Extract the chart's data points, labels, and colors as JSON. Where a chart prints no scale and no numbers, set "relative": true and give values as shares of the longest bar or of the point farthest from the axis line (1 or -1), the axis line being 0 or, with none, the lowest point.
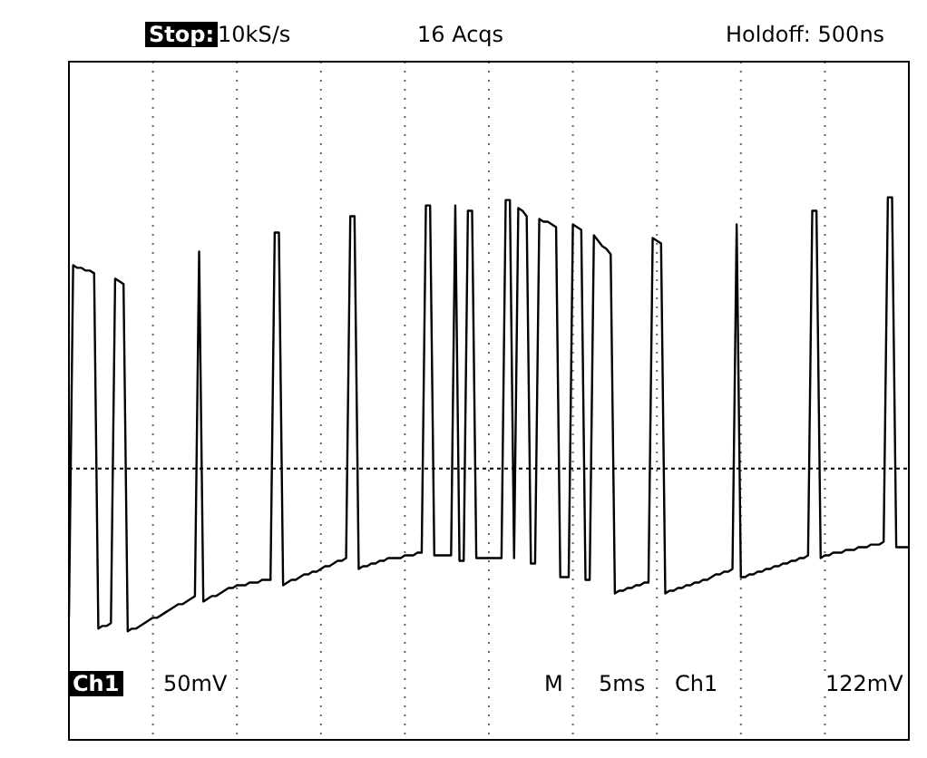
{
  "chart_data": {
    "type": "line",
    "relative": true,
    "color": "#000000",
    "grid": "x",
    "tick_labels": false,
    "ref_lines": [
      {
        "axis": "y",
        "value": 0,
        "line_style": "dotted"
      }
    ],
    "annotations": [
      "Stop:",
      "10kS/s",
      "16 Acqs",
      "Holdoff: 500ns",
      "Ch1",
      "50mV",
      "M",
      "5ms",
      "Ch1",
      "122mV"
    ],
    "categories": [
      null,
      null,
      null,
      null,
      null,
      null,
      null,
      null,
      null,
      null,
      null,
      null,
      null,
      null,
      null,
      null,
      null,
      null,
      null,
      null,
      null,
      null,
      null,
      null,
      null,
      null,
      null,
      null,
      null,
      null,
      null,
      null,
      null,
      null,
      null,
      null,
      null,
      null,
      null,
      null,
      null,
      null,
      null,
      null,
      null,
      null,
      null,
      null,
      null,
      null,
      null,
      null,
      null,
      null,
      null,
      null,
      null,
      null,
      null,
      null,
      null,
      null,
      null,
      null,
      null,
      null,
      null,
      null,
      null,
      null,
      null,
      null,
      null,
      null,
      null,
      null,
      null,
      null,
      null,
      null,
      null,
      null,
      null,
      null,
      null,
      null,
      null,
      null,
      null,
      null,
      null,
      null,
      null,
      null,
      null,
      null,
      null,
      null,
      null,
      null,
      null,
      null,
      null,
      null,
      null,
      null,
      null,
      null,
      null,
      null,
      null,
      null,
      null,
      null,
      null,
      null,
      null,
      null,
      null,
      null,
      null,
      null,
      null,
      null,
      null,
      null,
      null,
      null,
      null,
      null,
      null,
      null,
      null,
      null,
      null,
      null,
      null,
      null,
      null,
      null,
      null,
      null,
      null,
      null,
      null,
      null,
      null,
      null,
      null,
      null,
      null,
      null,
      null,
      null,
      null,
      null,
      null,
      null,
      null,
      null,
      null,
      null,
      null,
      null,
      null,
      null,
      null,
      null,
      null,
      null,
      null,
      null,
      null,
      null,
      null,
      null,
      null,
      null,
      null,
      null,
      null,
      null,
      null,
      null,
      null,
      null,
      null,
      null,
      null,
      null,
      null,
      null,
      null,
      null,
      null,
      null,
      null,
      null,
      null,
      null,
      null
    ],
    "values": [
      -0.55,
      0.75,
      0.74,
      0.74,
      0.73,
      0.73,
      0.72,
      -0.59,
      -0.58,
      -0.58,
      -0.57,
      0.7,
      0.69,
      0.68,
      -0.6,
      -0.59,
      -0.59,
      -0.58,
      -0.57,
      -0.56,
      -0.55,
      -0.55,
      -0.54,
      -0.53,
      -0.52,
      -0.51,
      -0.5,
      -0.5,
      -0.49,
      -0.48,
      -0.47,
      0.8,
      -0.49,
      -0.48,
      -0.47,
      -0.47,
      -0.46,
      -0.45,
      -0.44,
      -0.44,
      -0.43,
      -0.43,
      -0.43,
      -0.42,
      -0.42,
      -0.42,
      -0.41,
      -0.41,
      -0.41,
      0.87,
      0.87,
      -0.43,
      -0.42,
      -0.41,
      -0.41,
      -0.4,
      -0.39,
      -0.39,
      -0.38,
      -0.38,
      -0.37,
      -0.36,
      -0.36,
      -0.35,
      -0.34,
      -0.34,
      -0.33,
      0.93,
      0.93,
      -0.37,
      -0.36,
      -0.36,
      -0.35,
      -0.35,
      -0.34,
      -0.34,
      -0.33,
      -0.33,
      -0.33,
      -0.33,
      -0.32,
      -0.32,
      -0.32,
      -0.31,
      -0.31,
      0.97,
      0.97,
      -0.32,
      -0.32,
      -0.32,
      -0.32,
      -0.32,
      0.97,
      -0.34,
      -0.34,
      0.95,
      0.95,
      -0.33,
      -0.33,
      -0.33,
      -0.33,
      -0.33,
      -0.33,
      -0.33,
      0.99,
      0.99,
      -0.33,
      0.96,
      0.95,
      0.93,
      -0.35,
      -0.35,
      0.92,
      0.91,
      0.91,
      0.9,
      0.89,
      -0.4,
      -0.4,
      -0.4,
      0.9,
      0.89,
      0.88,
      -0.41,
      -0.41,
      0.86,
      0.84,
      0.82,
      0.81,
      0.79,
      -0.46,
      -0.45,
      -0.45,
      -0.44,
      -0.44,
      -0.43,
      -0.43,
      -0.42,
      -0.42,
      0.85,
      0.84,
      0.83,
      -0.46,
      -0.45,
      -0.45,
      -0.44,
      -0.44,
      -0.43,
      -0.43,
      -0.42,
      -0.42,
      -0.41,
      -0.41,
      -0.4,
      -0.39,
      -0.39,
      -0.38,
      -0.38,
      -0.37,
      0.9,
      -0.4,
      -0.4,
      -0.39,
      -0.39,
      -0.38,
      -0.38,
      -0.37,
      -0.37,
      -0.36,
      -0.36,
      -0.35,
      -0.35,
      -0.34,
      -0.34,
      -0.33,
      -0.33,
      -0.32,
      0.95,
      0.95,
      -0.33,
      -0.32,
      -0.32,
      -0.31,
      -0.31,
      -0.31,
      -0.3,
      -0.3,
      -0.3,
      -0.29,
      -0.29,
      -0.29,
      -0.28,
      -0.28,
      -0.28,
      -0.27,
      1,
      1,
      -0.29,
      -0.29,
      -0.29,
      -0.29
    ]
  }
}
